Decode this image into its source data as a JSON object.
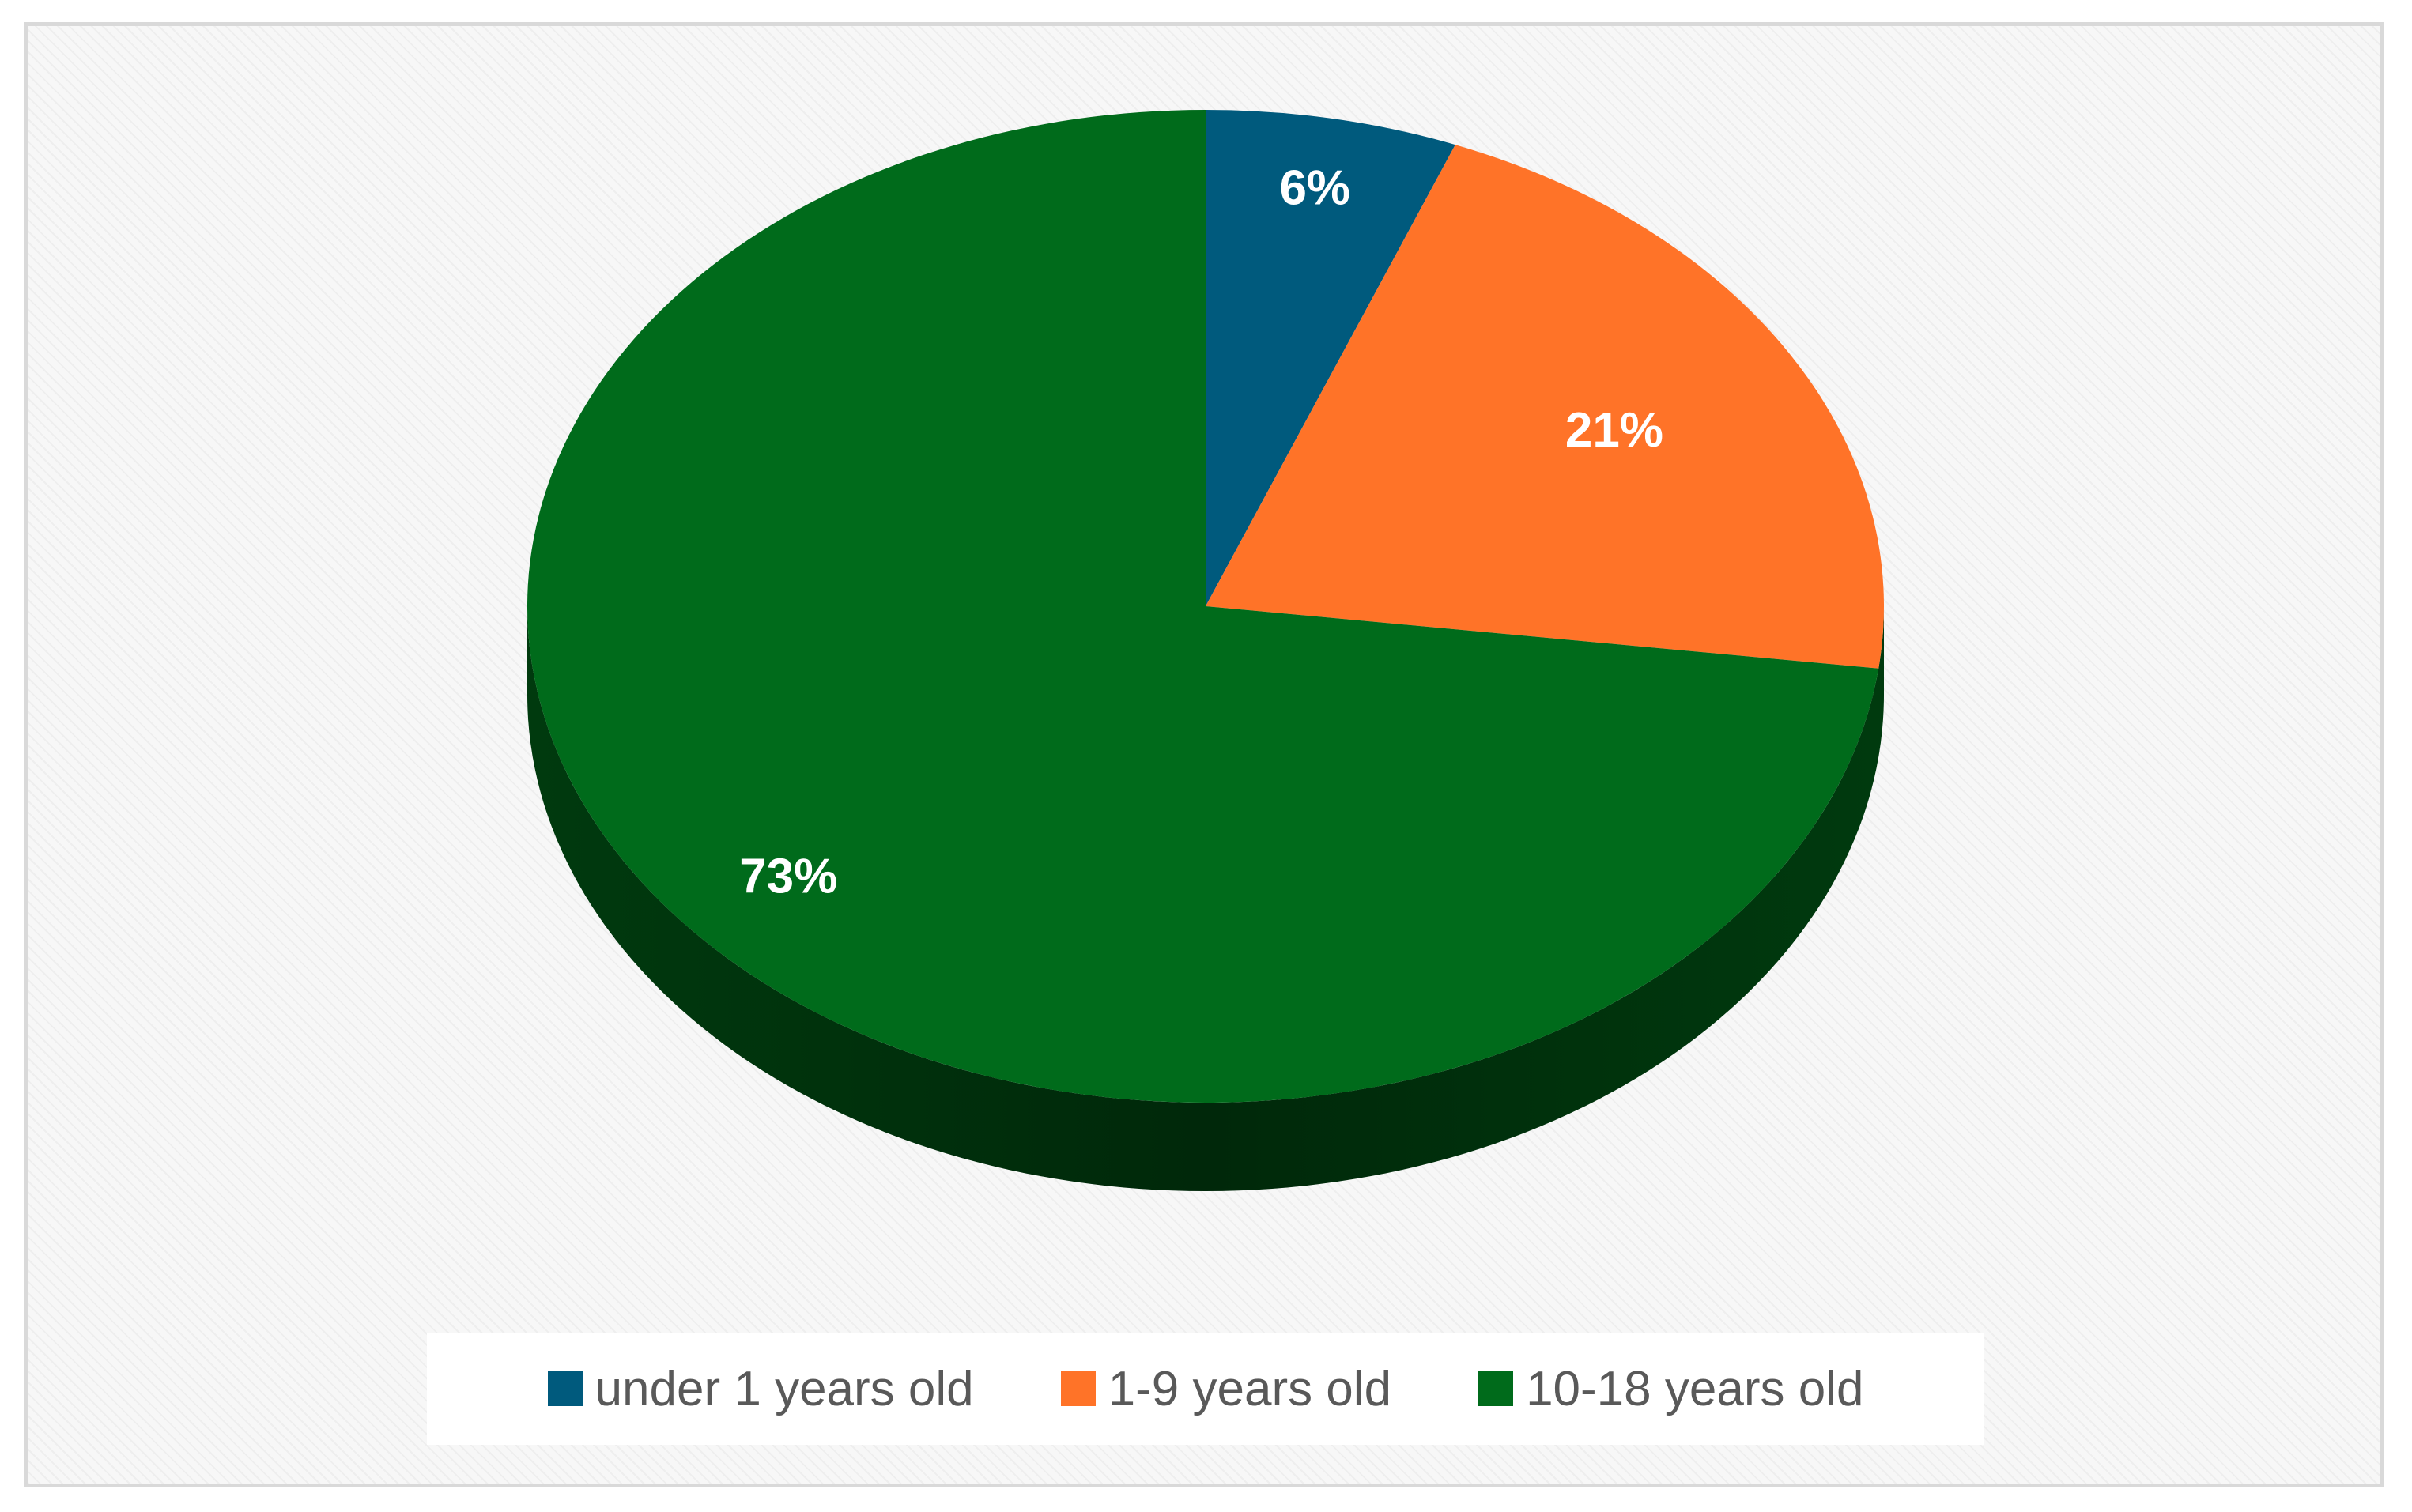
{
  "chart_data": {
    "type": "pie",
    "style": "3d",
    "categories": [
      "under 1 years old",
      "1-9 years old",
      "10-18 years old"
    ],
    "values": [
      6,
      21,
      73
    ],
    "data_labels": [
      "6%",
      "21%",
      "73%"
    ],
    "colors": [
      "#005a7d",
      "#ff7328",
      "#006b1b"
    ],
    "side_colors": [
      "#003a52",
      "#a84a15",
      "#003a0e"
    ],
    "title": "",
    "legend_position": "bottom",
    "start_angle": "12 o'clock",
    "direction": "clockwise"
  },
  "legend": {
    "items": [
      {
        "label": "under 1 years old",
        "color": "#005a7d"
      },
      {
        "label": "1-9 years old",
        "color": "#ff7328"
      },
      {
        "label": "10-18 years old",
        "color": "#006b1b"
      }
    ]
  }
}
